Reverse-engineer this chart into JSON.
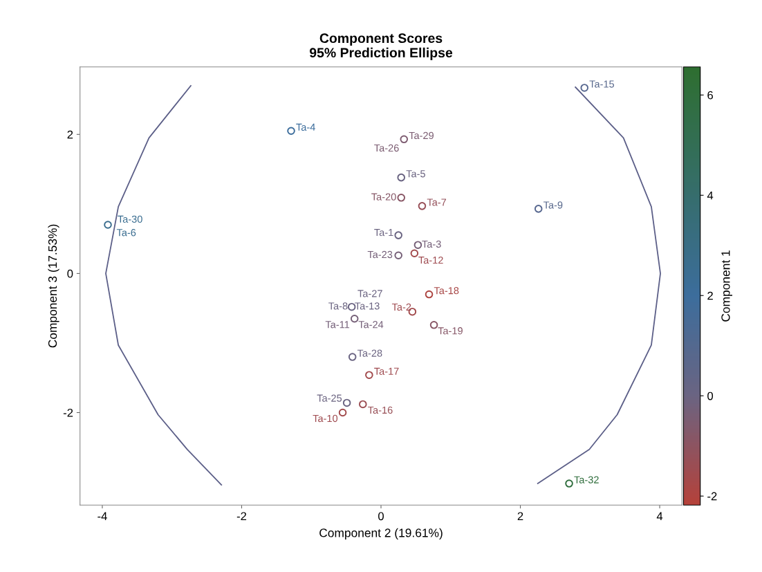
{
  "chart_data": {
    "type": "scatter",
    "title": "Component Scores\n95% Prediction Ellipse",
    "xlabel": "Component 2 (19.61%)",
    "ylabel": "Component 3 (17.53%)",
    "clabel": "Component 1",
    "xlim": [
      -4.32,
      4.32
    ],
    "ylim": [
      -3.33,
      2.97
    ],
    "xticks": [
      -4,
      -2,
      0,
      2,
      4
    ],
    "yticks": [
      -2,
      0,
      2
    ],
    "clim": [
      -2.18,
      6.56
    ],
    "cticks": [
      -2,
      0,
      2,
      4,
      6
    ],
    "grid": false,
    "legend": false,
    "marker": "circle",
    "series": [
      {
        "colors": [
          "#586890",
          "#3c6d9c",
          "#7d5b70",
          "#6a6482",
          "#885665",
          "#974f57",
          "#586890",
          "#3a6d8e",
          "#6a6482",
          "#755f77",
          "#755f77",
          "#a24a4c",
          "#ad4541",
          "#6a6482",
          "#a24a4c",
          "#755f77",
          "#885665",
          "#6a6482",
          "#a24a4c",
          "#6a6482",
          "#9b4d53",
          "#a24a4c",
          "#306e3e"
        ],
        "x": [
          2.92,
          -1.29,
          0.33,
          0.29,
          0.29,
          0.59,
          2.26,
          -3.92,
          0.25,
          0.53,
          0.25,
          0.48,
          0.69,
          -0.42,
          0.45,
          -0.38,
          0.76,
          -0.41,
          -0.17,
          -0.49,
          -0.26,
          -0.55,
          2.7
        ],
        "values": [
          2.67,
          2.05,
          1.93,
          1.38,
          1.09,
          0.97,
          0.93,
          0.7,
          0.55,
          0.41,
          0.26,
          0.29,
          -0.3,
          -0.48,
          -0.55,
          -0.65,
          -0.74,
          -1.2,
          -1.46,
          -1.86,
          -1.88,
          -2.0,
          -3.02
        ],
        "cvalues": [
          0.8,
          2.0,
          -0.5,
          0.0,
          -0.8,
          -1.2,
          0.8,
          2.5,
          0.0,
          -0.3,
          -0.3,
          -1.5,
          -1.8,
          0.0,
          -1.5,
          -0.3,
          -0.8,
          0.0,
          -1.5,
          0.0,
          -1.3,
          -1.5,
          6.0
        ]
      },
      {
        "type": "line",
        "color": "#5c5f88",
        "line_style": "solid",
        "marker": "none",
        "x": [
          -2.73,
          -3.33,
          -3.77,
          -3.95,
          -3.77,
          -3.2,
          -2.78,
          -2.29,
          null,
          2.79,
          3.48,
          3.88,
          4.01,
          3.88,
          3.39,
          2.99,
          2.25
        ],
        "values": [
          2.7,
          1.95,
          0.96,
          0.0,
          -1.03,
          -2.03,
          -2.53,
          -3.04,
          null,
          2.68,
          1.95,
          0.96,
          0.0,
          -1.03,
          -2.03,
          -2.53,
          -3.02
        ]
      }
    ],
    "annotations": [
      {
        "text": "Ta-15",
        "x": 2.92,
        "y": 2.67
      },
      {
        "text": "Ta-4",
        "x": -1.29,
        "y": 2.05
      },
      {
        "text": "Ta-29",
        "x": 0.33,
        "y": 1.93
      },
      {
        "text": "Ta-26",
        "x": 0.33,
        "y": 1.93
      },
      {
        "text": "Ta-5",
        "x": 0.29,
        "y": 1.38
      },
      {
        "text": "Ta-20",
        "x": 0.29,
        "y": 1.09
      },
      {
        "text": "Ta-7",
        "x": 0.59,
        "y": 0.97
      },
      {
        "text": "Ta-9",
        "x": 2.26,
        "y": 0.93
      },
      {
        "text": "Ta-30",
        "x": -3.92,
        "y": 0.7
      },
      {
        "text": "Ta-6",
        "x": -3.92,
        "y": 0.7
      },
      {
        "text": "Ta-1",
        "x": 0.25,
        "y": 0.55
      },
      {
        "text": "Ta-3",
        "x": 0.53,
        "y": 0.41
      },
      {
        "text": "Ta-23",
        "x": 0.25,
        "y": 0.26
      },
      {
        "text": "Ta-12",
        "x": 0.48,
        "y": 0.29
      },
      {
        "text": "Ta-18",
        "x": 0.69,
        "y": -0.3
      },
      {
        "text": "Ta-27",
        "x": -0.42,
        "y": -0.48
      },
      {
        "text": "Ta-8",
        "x": -0.42,
        "y": -0.48
      },
      {
        "text": "Ta-13",
        "x": -0.42,
        "y": -0.48
      },
      {
        "text": "Ta-2",
        "x": 0.45,
        "y": -0.55
      },
      {
        "text": "Ta-11",
        "x": -0.38,
        "y": -0.65
      },
      {
        "text": "Ta-24",
        "x": -0.38,
        "y": -0.65
      },
      {
        "text": "Ta-19",
        "x": 0.76,
        "y": -0.74
      },
      {
        "text": "Ta-28",
        "x": -0.41,
        "y": -1.2
      },
      {
        "text": "Ta-17",
        "x": -0.17,
        "y": -1.46
      },
      {
        "text": "Ta-25",
        "x": -0.49,
        "y": -1.86
      },
      {
        "text": "Ta-16",
        "x": -0.26,
        "y": -1.88
      },
      {
        "text": "Ta-10",
        "x": -0.55,
        "y": -2.0
      },
      {
        "text": "Ta-32",
        "x": 2.7,
        "y": -3.02
      }
    ]
  }
}
